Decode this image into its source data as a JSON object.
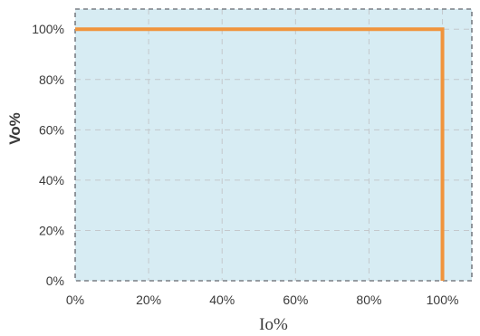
{
  "chart_data": {
    "type": "line",
    "xlabel": "Io%",
    "ylabel": "Vo%",
    "xlim": [
      0,
      108
    ],
    "ylim": [
      0,
      108
    ],
    "grid": true,
    "x_ticks": [
      0,
      20,
      40,
      60,
      80,
      100
    ],
    "y_ticks": [
      0,
      20,
      40,
      60,
      80,
      100
    ],
    "x_tick_labels": [
      "0%",
      "20%",
      "40%",
      "60%",
      "80%",
      "100%"
    ],
    "y_tick_labels": [
      "0%",
      "20%",
      "40%",
      "60%",
      "80%",
      "100%"
    ],
    "series": [
      {
        "x": [
          0,
          100,
          100
        ],
        "y": [
          100,
          100,
          0
        ],
        "color": "#F0943C"
      }
    ],
    "colors": {
      "plot_background": "#D7ECF3",
      "grid": "#C4C8CC",
      "frame": "#7A7F85",
      "line": "#F0943C"
    }
  }
}
